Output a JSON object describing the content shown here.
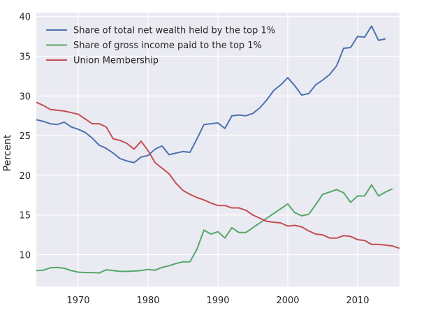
{
  "chart_data": {
    "type": "line",
    "title": "",
    "xlabel": "",
    "ylabel": "Percent",
    "xlim": [
      1964,
      2016
    ],
    "ylim": [
      6.0,
      40.5
    ],
    "xticks": [
      1970,
      1980,
      1990,
      2000,
      2010
    ],
    "yticks": [
      10,
      15,
      20,
      25,
      30,
      35,
      40
    ],
    "grid": true,
    "legend_position": "top-left",
    "series": [
      {
        "name": "Share of total net wealth held by the top 1%",
        "color": "#4c72b0",
        "x": [
          1964,
          1965,
          1966,
          1967,
          1968,
          1969,
          1970,
          1971,
          1972,
          1973,
          1974,
          1975,
          1976,
          1977,
          1978,
          1979,
          1980,
          1981,
          1982,
          1983,
          1984,
          1985,
          1986,
          1987,
          1988,
          1989,
          1990,
          1991,
          1992,
          1993,
          1994,
          1995,
          1996,
          1997,
          1998,
          1999,
          2000,
          2001,
          2002,
          2003,
          2004,
          2005,
          2006,
          2007,
          2008,
          2009,
          2010,
          2011,
          2012,
          2013,
          2014
        ],
        "y": [
          27.0,
          26.8,
          26.5,
          26.4,
          26.7,
          26.1,
          25.8,
          25.4,
          24.7,
          23.8,
          23.4,
          22.8,
          22.1,
          21.8,
          21.6,
          22.3,
          22.5,
          23.3,
          23.7,
          22.6,
          22.8,
          23.0,
          22.9,
          24.6,
          26.4,
          26.5,
          26.6,
          25.9,
          27.5,
          27.6,
          27.5,
          27.8,
          28.5,
          29.5,
          30.7,
          31.4,
          32.3,
          31.3,
          30.1,
          30.3,
          31.4,
          32.0,
          32.7,
          33.8,
          36.0,
          36.1,
          37.5,
          37.4,
          38.8,
          37.0,
          37.2
        ]
      },
      {
        "name": "Share of gross income paid to the top 1%",
        "color": "#55a868",
        "x": [
          1964,
          1965,
          1966,
          1967,
          1968,
          1969,
          1970,
          1971,
          1972,
          1973,
          1974,
          1975,
          1976,
          1977,
          1978,
          1979,
          1980,
          1981,
          1982,
          1983,
          1984,
          1985,
          1986,
          1987,
          1988,
          1989,
          1990,
          1991,
          1992,
          1993,
          1994,
          1995,
          1996,
          1997,
          1998,
          1999,
          2000,
          2001,
          2002,
          2003,
          2004,
          2005,
          2006,
          2007,
          2008,
          2009,
          2010,
          2011,
          2012,
          2013,
          2014,
          2015
        ],
        "y": [
          8.0,
          8.05,
          8.35,
          8.4,
          8.3,
          8.0,
          7.8,
          7.75,
          7.75,
          7.7,
          8.1,
          8.0,
          7.9,
          7.9,
          7.95,
          8.0,
          8.15,
          8.05,
          8.4,
          8.6,
          8.9,
          9.1,
          9.1,
          10.7,
          13.1,
          12.6,
          12.9,
          12.1,
          13.4,
          12.8,
          12.8,
          13.4,
          14.0,
          14.6,
          15.2,
          15.8,
          16.4,
          15.3,
          14.9,
          15.1,
          16.3,
          17.6,
          17.9,
          18.2,
          17.8,
          16.6,
          17.4,
          17.4,
          18.8,
          17.4,
          17.9,
          18.3
        ]
      },
      {
        "name": "Union Membership",
        "color": "#c44e52",
        "x": [
          1964,
          1965,
          1966,
          1967,
          1968,
          1969,
          1970,
          1971,
          1972,
          1973,
          1974,
          1975,
          1976,
          1977,
          1978,
          1979,
          1980,
          1981,
          1982,
          1983,
          1984,
          1985,
          1986,
          1987,
          1988,
          1989,
          1990,
          1991,
          1992,
          1993,
          1994,
          1995,
          1996,
          1997,
          1998,
          1999,
          2000,
          2001,
          2002,
          2003,
          2004,
          2005,
          2006,
          2007,
          2008,
          2009,
          2010,
          2011,
          2012,
          2013,
          2014,
          2015,
          2016
        ],
        "y": [
          29.2,
          28.8,
          28.3,
          28.2,
          28.1,
          27.9,
          27.7,
          27.1,
          26.5,
          26.5,
          26.1,
          24.6,
          24.4,
          24.0,
          23.3,
          24.3,
          23.1,
          21.6,
          20.9,
          20.2,
          19.0,
          18.1,
          17.6,
          17.2,
          16.9,
          16.5,
          16.2,
          16.2,
          15.9,
          15.9,
          15.6,
          15.0,
          14.6,
          14.2,
          14.1,
          14.0,
          13.6,
          13.7,
          13.5,
          13.0,
          12.6,
          12.5,
          12.1,
          12.1,
          12.4,
          12.3,
          11.9,
          11.8,
          11.3,
          11.3,
          11.2,
          11.1,
          10.8
        ]
      }
    ]
  }
}
